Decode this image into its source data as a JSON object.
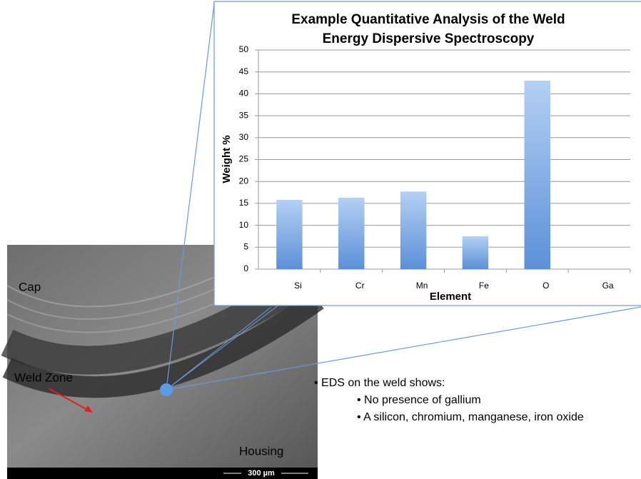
{
  "chart_data": {
    "type": "bar",
    "title": [
      "Example Quantitative Analysis of the Weld",
      "Energy Dispersive Spectroscopy"
    ],
    "y_label": "Weight %",
    "x_label": "Element",
    "categories": [
      "Si",
      "Cr",
      "Mn",
      "Fe",
      "O",
      "Ga"
    ],
    "values": [
      15.8,
      16.3,
      17.7,
      7.5,
      43,
      0
    ],
    "color": "#5b90d8",
    "ylim": [
      0,
      50
    ],
    "yticks": [
      0,
      5,
      10,
      15,
      20,
      25,
      30,
      35,
      40,
      45,
      50
    ],
    "grid": true
  },
  "image_labels": {
    "cap": "Cap",
    "weld_zone": "Weld Zone",
    "housing": "Housing",
    "scale_bar": "300 µm"
  },
  "bullets": {
    "heading": "• EDS on the weld shows:",
    "items": [
      "• No presence of gallium",
      "• A silicon, chromium, manganese, iron oxide"
    ]
  }
}
